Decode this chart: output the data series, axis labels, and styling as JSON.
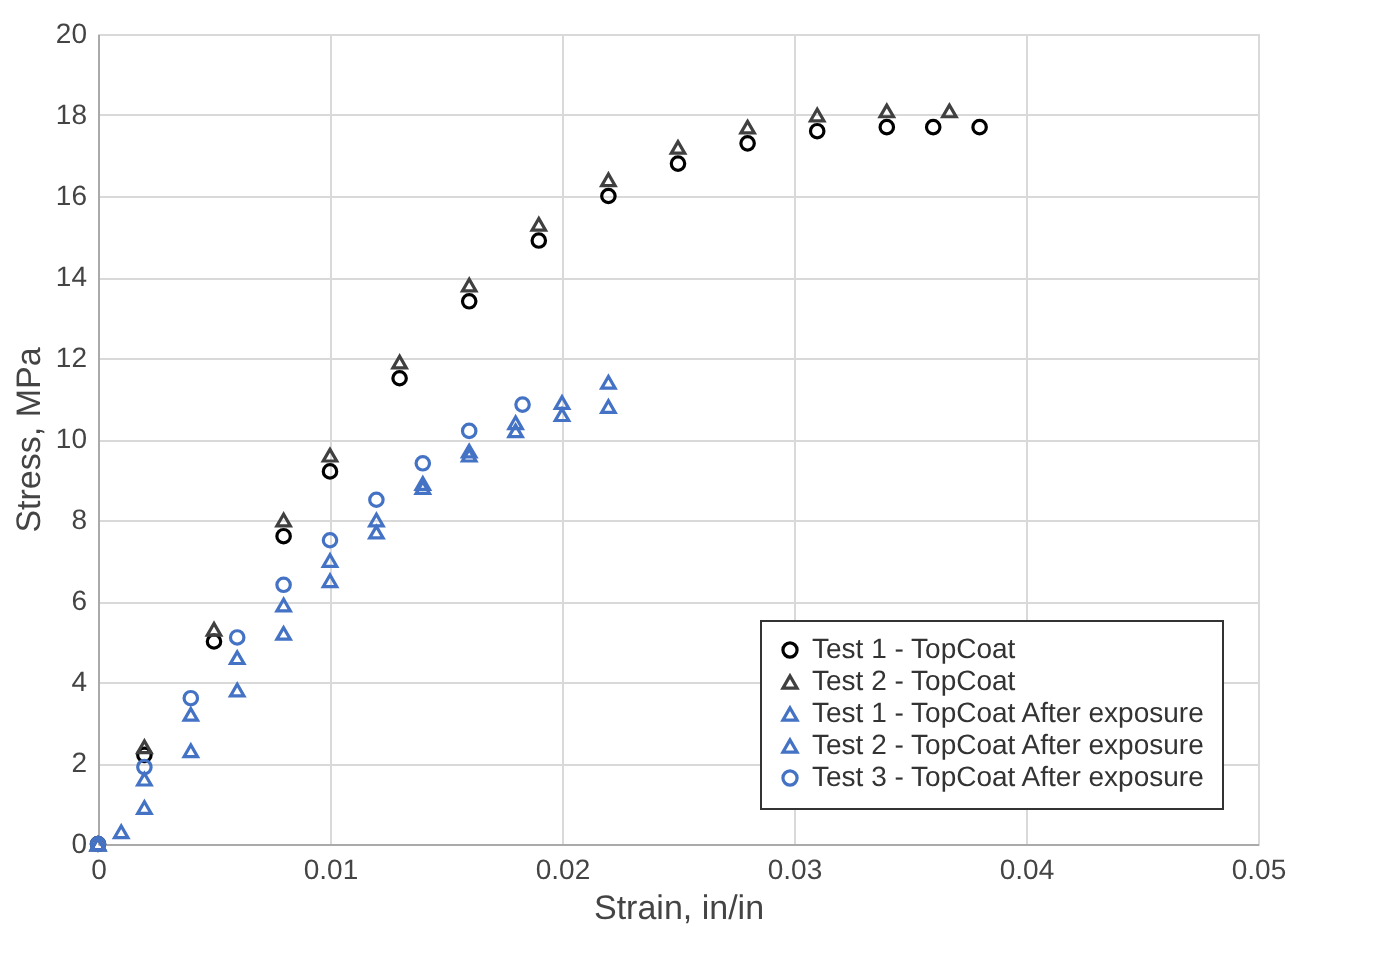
{
  "chart_data": {
    "type": "scatter",
    "xlabel": "Strain, in/in",
    "ylabel": "Stress, MPa",
    "xlim": [
      0,
      0.05
    ],
    "xticks": [
      0,
      0.01,
      0.02,
      0.03,
      0.04,
      0.05
    ],
    "ylim": [
      0,
      20
    ],
    "yticks": [
      0,
      2,
      4,
      6,
      8,
      10,
      12,
      14,
      16,
      18,
      20
    ],
    "grid": true,
    "legend": "bottom right",
    "series": [
      {
        "name": "Test 1 - TopCoat",
        "color": "#000000",
        "marker": "circle",
        "x": [
          0,
          0.002,
          0.005,
          0.008,
          0.01,
          0.013,
          0.016,
          0.019,
          0.022,
          0.025,
          0.028,
          0.031,
          0.034,
          0.036,
          0.038
        ],
        "values": [
          0,
          2.2,
          5.0,
          7.6,
          9.2,
          11.5,
          13.4,
          14.9,
          16.0,
          16.8,
          17.3,
          17.6,
          17.7,
          17.7,
          17.7
        ]
      },
      {
        "name": "Test 2 - TopCoat",
        "color": "#404040",
        "marker": "triangle",
        "x": [
          0,
          0.002,
          0.005,
          0.008,
          0.01,
          0.013,
          0.016,
          0.019,
          0.022,
          0.025,
          0.028,
          0.031,
          0.034,
          0.0367
        ],
        "values": [
          0,
          2.4,
          5.3,
          8.0,
          9.6,
          11.9,
          13.8,
          15.3,
          16.4,
          17.2,
          17.7,
          18.0,
          18.1,
          18.1
        ]
      },
      {
        "name": "Test 1 - TopCoat After exposure",
        "color": "#4472c4",
        "marker": "triangle",
        "x": [
          0,
          0.001,
          0.002,
          0.004,
          0.006,
          0.008,
          0.01,
          0.012,
          0.014,
          0.016,
          0.018,
          0.02,
          0.022
        ],
        "values": [
          0,
          0.3,
          0.9,
          2.3,
          3.8,
          5.2,
          6.5,
          7.7,
          8.8,
          9.7,
          10.4,
          10.9,
          11.4
        ]
      },
      {
        "name": "Test 2 - TopCoat After exposure",
        "color": "#4472c4",
        "marker": "triangle",
        "x": [
          0,
          0.002,
          0.004,
          0.006,
          0.008,
          0.01,
          0.012,
          0.014,
          0.016,
          0.018,
          0.02,
          0.022
        ],
        "values": [
          0,
          1.6,
          3.2,
          4.6,
          5.9,
          7.0,
          8.0,
          8.9,
          9.6,
          10.2,
          10.6,
          10.8
        ]
      },
      {
        "name": "Test 3 - TopCoat After exposure",
        "color": "#4472c4",
        "marker": "circle",
        "x": [
          0,
          0.002,
          0.004,
          0.006,
          0.008,
          0.01,
          0.012,
          0.014,
          0.016,
          0.0183
        ],
        "values": [
          0,
          1.9,
          3.6,
          5.1,
          6.4,
          7.5,
          8.5,
          9.4,
          10.2,
          10.85
        ]
      }
    ]
  }
}
